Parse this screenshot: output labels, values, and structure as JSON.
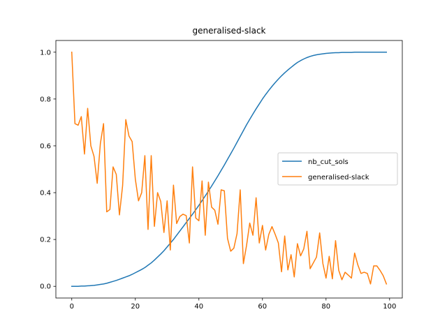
{
  "chart_data": {
    "type": "line",
    "title": "generalised-slack",
    "xlabel": "",
    "ylabel": "",
    "xlim": [
      -5,
      104
    ],
    "ylim": [
      -0.05,
      1.05
    ],
    "xticks": [
      0,
      20,
      40,
      60,
      80,
      100
    ],
    "xtick_labels": [
      "0",
      "20",
      "40",
      "60",
      "80",
      "100"
    ],
    "yticks": [
      0.0,
      0.2,
      0.4,
      0.6,
      0.8,
      1.0
    ],
    "ytick_labels": [
      "0.0",
      "0.2",
      "0.4",
      "0.6",
      "0.8",
      "1.0"
    ],
    "grid": false,
    "legend_position": "center-right",
    "x": [
      0,
      1,
      2,
      3,
      4,
      5,
      6,
      7,
      8,
      9,
      10,
      11,
      12,
      13,
      14,
      15,
      16,
      17,
      18,
      19,
      20,
      21,
      22,
      23,
      24,
      25,
      26,
      27,
      28,
      29,
      30,
      31,
      32,
      33,
      34,
      35,
      36,
      37,
      38,
      39,
      40,
      41,
      42,
      43,
      44,
      45,
      46,
      47,
      48,
      49,
      50,
      51,
      52,
      53,
      54,
      55,
      56,
      57,
      58,
      59,
      60,
      61,
      62,
      63,
      64,
      65,
      66,
      67,
      68,
      69,
      70,
      71,
      72,
      73,
      74,
      75,
      76,
      77,
      78,
      79,
      80,
      81,
      82,
      83,
      84,
      85,
      86,
      87,
      88,
      89,
      90,
      91,
      92,
      93,
      94,
      95,
      96,
      97,
      98,
      99
    ],
    "series": [
      {
        "name": "nb_cut_sols",
        "color": "#1f77b4",
        "values": [
          0.0,
          0.0,
          0.0,
          0.001,
          0.001,
          0.002,
          0.003,
          0.004,
          0.006,
          0.008,
          0.01,
          0.013,
          0.017,
          0.021,
          0.025,
          0.03,
          0.035,
          0.04,
          0.045,
          0.051,
          0.058,
          0.065,
          0.072,
          0.08,
          0.09,
          0.1,
          0.112,
          0.125,
          0.138,
          0.152,
          0.168,
          0.184,
          0.2,
          0.218,
          0.236,
          0.254,
          0.272,
          0.29,
          0.308,
          0.327,
          0.346,
          0.366,
          0.386,
          0.407,
          0.428,
          0.45,
          0.472,
          0.495,
          0.518,
          0.542,
          0.566,
          0.59,
          0.615,
          0.64,
          0.665,
          0.69,
          0.713,
          0.736,
          0.758,
          0.779,
          0.8,
          0.819,
          0.837,
          0.854,
          0.87,
          0.885,
          0.899,
          0.912,
          0.924,
          0.935,
          0.946,
          0.956,
          0.964,
          0.971,
          0.977,
          0.982,
          0.986,
          0.989,
          0.991,
          0.993,
          0.995,
          0.996,
          0.997,
          0.998,
          0.998,
          0.999,
          0.999,
          0.999,
          0.999,
          1.0,
          1.0,
          1.0,
          1.0,
          1.0,
          1.0,
          1.0,
          1.0,
          1.0,
          1.0,
          1.0
        ]
      },
      {
        "name": "generalised-slack",
        "color": "#ff7f0e",
        "values": [
          1.0,
          0.695,
          0.688,
          0.725,
          0.565,
          0.76,
          0.6,
          0.555,
          0.44,
          0.61,
          0.695,
          0.318,
          0.328,
          0.51,
          0.478,
          0.305,
          0.43,
          0.712,
          0.642,
          0.618,
          0.458,
          0.365,
          0.4,
          0.558,
          0.243,
          0.558,
          0.256,
          0.4,
          0.362,
          0.23,
          0.365,
          0.155,
          0.432,
          0.268,
          0.298,
          0.308,
          0.302,
          0.185,
          0.51,
          0.292,
          0.28,
          0.45,
          0.218,
          0.445,
          0.338,
          0.325,
          0.265,
          0.412,
          0.408,
          0.205,
          0.15,
          0.163,
          0.225,
          0.412,
          0.097,
          0.175,
          0.27,
          0.218,
          0.378,
          0.185,
          0.26,
          0.155,
          0.222,
          0.255,
          0.222,
          0.185,
          0.062,
          0.215,
          0.07,
          0.135,
          0.04,
          0.182,
          0.13,
          0.16,
          0.235,
          0.075,
          0.1,
          0.125,
          0.228,
          0.098,
          0.035,
          0.128,
          0.032,
          0.195,
          0.068,
          0.028,
          0.06,
          0.048,
          0.035,
          0.142,
          0.092,
          0.055,
          0.06,
          0.055,
          0.01,
          0.087,
          0.087,
          0.068,
          0.045,
          0.01
        ]
      }
    ]
  }
}
